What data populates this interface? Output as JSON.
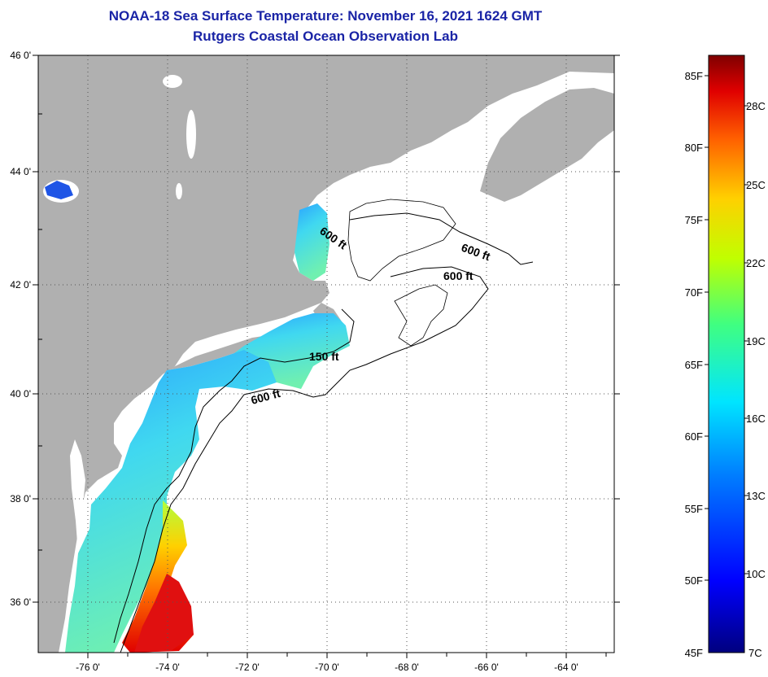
{
  "titles": {
    "line1": "NOAA-18 Sea Surface Temperature:  November 16, 2021 1624 GMT",
    "line2": "Rutgers Coastal Ocean Observation Lab"
  },
  "axes": {
    "lat_labels": [
      "46 0'",
      "44 0'",
      "42 0'",
      "40 0'",
      "38 0'",
      "36 0'"
    ],
    "lon_labels": [
      "-76 0'",
      "-74 0'",
      "-72 0'",
      "-70 0'",
      "-68 0'",
      "-66 0'",
      "-64 0'"
    ]
  },
  "contours": {
    "label_600_gulf": "600 ft",
    "label_600_east": "600 ft",
    "label_600_bank": "600 ft",
    "label_150": "150 ft",
    "label_600_shelf": "600 ft"
  },
  "colorbar": {
    "fahrenheit": [
      "85F",
      "80F",
      "75F",
      "70F",
      "65F",
      "60F",
      "55F",
      "50F",
      "45F"
    ],
    "celsius": [
      "28C",
      "25C",
      "22C",
      "19C",
      "16C",
      "13C",
      "10C",
      "7C"
    ]
  },
  "colors": {
    "title": "#1a24a6",
    "land": "#b0b0b0",
    "ocean_nodata": "#ffffff"
  }
}
